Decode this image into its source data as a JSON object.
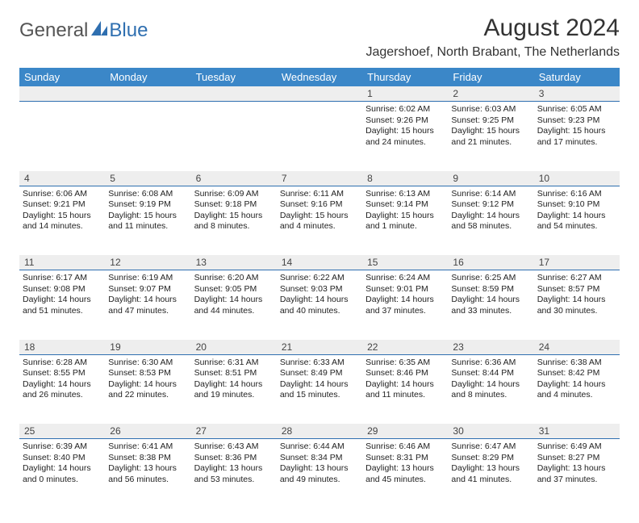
{
  "logo": {
    "part1": "General",
    "part2": "Blue"
  },
  "title": "August 2024",
  "subtitle": "Jagershoef, North Brabant, The Netherlands",
  "colors": {
    "header_bg": "#3b87c8",
    "header_text": "#ffffff",
    "daynum_bg": "#eeeeee",
    "daynum_border": "#2f6fb0",
    "body_text": "#222222",
    "logo_gray": "#555555",
    "logo_blue": "#2f6fb0"
  },
  "day_names": [
    "Sunday",
    "Monday",
    "Tuesday",
    "Wednesday",
    "Thursday",
    "Friday",
    "Saturday"
  ],
  "weeks": [
    {
      "nums": [
        "",
        "",
        "",
        "",
        "1",
        "2",
        "3"
      ],
      "cells": [
        null,
        null,
        null,
        null,
        {
          "sr": "Sunrise: 6:02 AM",
          "ss": "Sunset: 9:26 PM",
          "d1": "Daylight: 15 hours",
          "d2": "and 24 minutes."
        },
        {
          "sr": "Sunrise: 6:03 AM",
          "ss": "Sunset: 9:25 PM",
          "d1": "Daylight: 15 hours",
          "d2": "and 21 minutes."
        },
        {
          "sr": "Sunrise: 6:05 AM",
          "ss": "Sunset: 9:23 PM",
          "d1": "Daylight: 15 hours",
          "d2": "and 17 minutes."
        }
      ]
    },
    {
      "nums": [
        "4",
        "5",
        "6",
        "7",
        "8",
        "9",
        "10"
      ],
      "cells": [
        {
          "sr": "Sunrise: 6:06 AM",
          "ss": "Sunset: 9:21 PM",
          "d1": "Daylight: 15 hours",
          "d2": "and 14 minutes."
        },
        {
          "sr": "Sunrise: 6:08 AM",
          "ss": "Sunset: 9:19 PM",
          "d1": "Daylight: 15 hours",
          "d2": "and 11 minutes."
        },
        {
          "sr": "Sunrise: 6:09 AM",
          "ss": "Sunset: 9:18 PM",
          "d1": "Daylight: 15 hours",
          "d2": "and 8 minutes."
        },
        {
          "sr": "Sunrise: 6:11 AM",
          "ss": "Sunset: 9:16 PM",
          "d1": "Daylight: 15 hours",
          "d2": "and 4 minutes."
        },
        {
          "sr": "Sunrise: 6:13 AM",
          "ss": "Sunset: 9:14 PM",
          "d1": "Daylight: 15 hours",
          "d2": "and 1 minute."
        },
        {
          "sr": "Sunrise: 6:14 AM",
          "ss": "Sunset: 9:12 PM",
          "d1": "Daylight: 14 hours",
          "d2": "and 58 minutes."
        },
        {
          "sr": "Sunrise: 6:16 AM",
          "ss": "Sunset: 9:10 PM",
          "d1": "Daylight: 14 hours",
          "d2": "and 54 minutes."
        }
      ]
    },
    {
      "nums": [
        "11",
        "12",
        "13",
        "14",
        "15",
        "16",
        "17"
      ],
      "cells": [
        {
          "sr": "Sunrise: 6:17 AM",
          "ss": "Sunset: 9:08 PM",
          "d1": "Daylight: 14 hours",
          "d2": "and 51 minutes."
        },
        {
          "sr": "Sunrise: 6:19 AM",
          "ss": "Sunset: 9:07 PM",
          "d1": "Daylight: 14 hours",
          "d2": "and 47 minutes."
        },
        {
          "sr": "Sunrise: 6:20 AM",
          "ss": "Sunset: 9:05 PM",
          "d1": "Daylight: 14 hours",
          "d2": "and 44 minutes."
        },
        {
          "sr": "Sunrise: 6:22 AM",
          "ss": "Sunset: 9:03 PM",
          "d1": "Daylight: 14 hours",
          "d2": "and 40 minutes."
        },
        {
          "sr": "Sunrise: 6:24 AM",
          "ss": "Sunset: 9:01 PM",
          "d1": "Daylight: 14 hours",
          "d2": "and 37 minutes."
        },
        {
          "sr": "Sunrise: 6:25 AM",
          "ss": "Sunset: 8:59 PM",
          "d1": "Daylight: 14 hours",
          "d2": "and 33 minutes."
        },
        {
          "sr": "Sunrise: 6:27 AM",
          "ss": "Sunset: 8:57 PM",
          "d1": "Daylight: 14 hours",
          "d2": "and 30 minutes."
        }
      ]
    },
    {
      "nums": [
        "18",
        "19",
        "20",
        "21",
        "22",
        "23",
        "24"
      ],
      "cells": [
        {
          "sr": "Sunrise: 6:28 AM",
          "ss": "Sunset: 8:55 PM",
          "d1": "Daylight: 14 hours",
          "d2": "and 26 minutes."
        },
        {
          "sr": "Sunrise: 6:30 AM",
          "ss": "Sunset: 8:53 PM",
          "d1": "Daylight: 14 hours",
          "d2": "and 22 minutes."
        },
        {
          "sr": "Sunrise: 6:31 AM",
          "ss": "Sunset: 8:51 PM",
          "d1": "Daylight: 14 hours",
          "d2": "and 19 minutes."
        },
        {
          "sr": "Sunrise: 6:33 AM",
          "ss": "Sunset: 8:49 PM",
          "d1": "Daylight: 14 hours",
          "d2": "and 15 minutes."
        },
        {
          "sr": "Sunrise: 6:35 AM",
          "ss": "Sunset: 8:46 PM",
          "d1": "Daylight: 14 hours",
          "d2": "and 11 minutes."
        },
        {
          "sr": "Sunrise: 6:36 AM",
          "ss": "Sunset: 8:44 PM",
          "d1": "Daylight: 14 hours",
          "d2": "and 8 minutes."
        },
        {
          "sr": "Sunrise: 6:38 AM",
          "ss": "Sunset: 8:42 PM",
          "d1": "Daylight: 14 hours",
          "d2": "and 4 minutes."
        }
      ]
    },
    {
      "nums": [
        "25",
        "26",
        "27",
        "28",
        "29",
        "30",
        "31"
      ],
      "cells": [
        {
          "sr": "Sunrise: 6:39 AM",
          "ss": "Sunset: 8:40 PM",
          "d1": "Daylight: 14 hours",
          "d2": "and 0 minutes."
        },
        {
          "sr": "Sunrise: 6:41 AM",
          "ss": "Sunset: 8:38 PM",
          "d1": "Daylight: 13 hours",
          "d2": "and 56 minutes."
        },
        {
          "sr": "Sunrise: 6:43 AM",
          "ss": "Sunset: 8:36 PM",
          "d1": "Daylight: 13 hours",
          "d2": "and 53 minutes."
        },
        {
          "sr": "Sunrise: 6:44 AM",
          "ss": "Sunset: 8:34 PM",
          "d1": "Daylight: 13 hours",
          "d2": "and 49 minutes."
        },
        {
          "sr": "Sunrise: 6:46 AM",
          "ss": "Sunset: 8:31 PM",
          "d1": "Daylight: 13 hours",
          "d2": "and 45 minutes."
        },
        {
          "sr": "Sunrise: 6:47 AM",
          "ss": "Sunset: 8:29 PM",
          "d1": "Daylight: 13 hours",
          "d2": "and 41 minutes."
        },
        {
          "sr": "Sunrise: 6:49 AM",
          "ss": "Sunset: 8:27 PM",
          "d1": "Daylight: 13 hours",
          "d2": "and 37 minutes."
        }
      ]
    }
  ]
}
